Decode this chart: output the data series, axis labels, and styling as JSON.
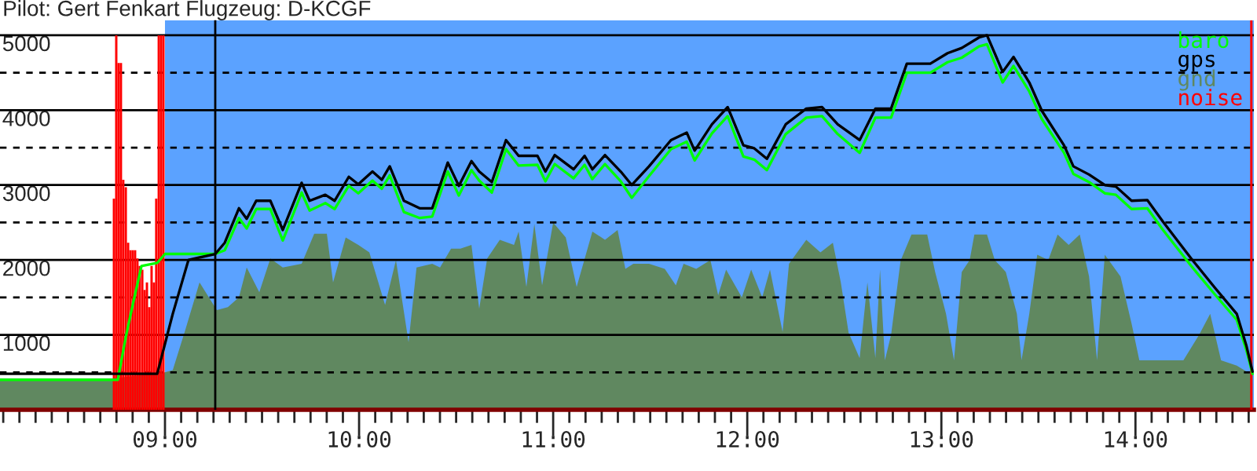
{
  "chart_data": {
    "type": "line",
    "title": "Pilot: Gert Fenkart Flugzeug: D-KCGF",
    "xlim": [
      8.15,
      14.61
    ],
    "ylim": [
      0,
      5200
    ],
    "xticks": [
      {
        "value": 8.1667,
        "label": null
      },
      {
        "value": 8.25,
        "label": null
      },
      {
        "value": 8.3333,
        "label": null
      },
      {
        "value": 8.4167,
        "label": null
      },
      {
        "value": 8.5,
        "label": null
      },
      {
        "value": 8.5833,
        "label": null
      },
      {
        "value": 8.6667,
        "label": null
      },
      {
        "value": 8.75,
        "label": null
      },
      {
        "value": 8.8333,
        "label": null
      },
      {
        "value": 8.9167,
        "label": null
      },
      {
        "value": 9,
        "label": "09:00"
      },
      {
        "value": 9.0833,
        "label": null
      },
      {
        "value": 9.1667,
        "label": null
      },
      {
        "value": 9.25,
        "label": null
      },
      {
        "value": 9.3333,
        "label": null
      },
      {
        "value": 9.4167,
        "label": null
      },
      {
        "value": 9.5,
        "label": null
      },
      {
        "value": 9.5833,
        "label": null
      },
      {
        "value": 9.6667,
        "label": null
      },
      {
        "value": 9.75,
        "label": null
      },
      {
        "value": 9.8333,
        "label": null
      },
      {
        "value": 9.9167,
        "label": null
      },
      {
        "value": 10,
        "label": "10:00"
      },
      {
        "value": 10.0833,
        "label": null
      },
      {
        "value": 10.1667,
        "label": null
      },
      {
        "value": 10.25,
        "label": null
      },
      {
        "value": 10.3333,
        "label": null
      },
      {
        "value": 10.4167,
        "label": null
      },
      {
        "value": 10.5,
        "label": null
      },
      {
        "value": 10.5833,
        "label": null
      },
      {
        "value": 10.6667,
        "label": null
      },
      {
        "value": 10.75,
        "label": null
      },
      {
        "value": 10.8333,
        "label": null
      },
      {
        "value": 10.9167,
        "label": null
      },
      {
        "value": 11,
        "label": "11:00"
      },
      {
        "value": 11.0833,
        "label": null
      },
      {
        "value": 11.1667,
        "label": null
      },
      {
        "value": 11.25,
        "label": null
      },
      {
        "value": 11.3333,
        "label": null
      },
      {
        "value": 11.4167,
        "label": null
      },
      {
        "value": 11.5,
        "label": null
      },
      {
        "value": 11.5833,
        "label": null
      },
      {
        "value": 11.6667,
        "label": null
      },
      {
        "value": 11.75,
        "label": null
      },
      {
        "value": 11.8333,
        "label": null
      },
      {
        "value": 11.9167,
        "label": null
      },
      {
        "value": 12,
        "label": "12:00"
      },
      {
        "value": 12.0833,
        "label": null
      },
      {
        "value": 12.1667,
        "label": null
      },
      {
        "value": 12.25,
        "label": null
      },
      {
        "value": 12.3333,
        "label": null
      },
      {
        "value": 12.4167,
        "label": null
      },
      {
        "value": 12.5,
        "label": null
      },
      {
        "value": 12.5833,
        "label": null
      },
      {
        "value": 12.6667,
        "label": null
      },
      {
        "value": 12.75,
        "label": null
      },
      {
        "value": 12.8333,
        "label": null
      },
      {
        "value": 12.9167,
        "label": null
      },
      {
        "value": 13,
        "label": "13:00"
      },
      {
        "value": 13.0833,
        "label": null
      },
      {
        "value": 13.1667,
        "label": null
      },
      {
        "value": 13.25,
        "label": null
      },
      {
        "value": 13.3333,
        "label": null
      },
      {
        "value": 13.4167,
        "label": null
      },
      {
        "value": 13.5,
        "label": null
      },
      {
        "value": 13.5833,
        "label": null
      },
      {
        "value": 13.6667,
        "label": null
      },
      {
        "value": 13.75,
        "label": null
      },
      {
        "value": 13.8333,
        "label": null
      },
      {
        "value": 13.9167,
        "label": null
      },
      {
        "value": 14,
        "label": "14:00"
      },
      {
        "value": 14.0833,
        "label": null
      },
      {
        "value": 14.1667,
        "label": null
      },
      {
        "value": 14.25,
        "label": null
      },
      {
        "value": 14.3333,
        "label": null
      },
      {
        "value": 14.4167,
        "label": null
      },
      {
        "value": 14.5,
        "label": null
      },
      {
        "value": 14.5833,
        "label": null
      }
    ],
    "yticks": [
      {
        "value": 500,
        "label": null
      },
      1000,
      {
        "value": 1500,
        "label": null
      },
      2000,
      {
        "value": 2500,
        "label": null
      },
      3000,
      {
        "value": 3500,
        "label": null
      },
      4000,
      {
        "value": 4500,
        "label": null
      },
      5000
    ],
    "grid": "y",
    "legend": "top right",
    "bands": [
      {
        "axis": "x",
        "from": 9.0,
        "to": 14.61,
        "color": "#5ba2ff"
      }
    ],
    "ref_lines": [
      {
        "axis": "x",
        "value": 9.259,
        "color": "#000000"
      }
    ],
    "series": [
      {
        "name": "gnd",
        "type": "area",
        "color": "#608860",
        "x": [
          8.15,
          8.733,
          9.0,
          9.04,
          9.105,
          9.178,
          9.267,
          9.324,
          9.381,
          9.421,
          9.486,
          9.543,
          9.607,
          9.704,
          9.769,
          9.834,
          9.866,
          9.931,
          9.996,
          10.053,
          10.134,
          10.19,
          10.255,
          10.296,
          10.377,
          10.417,
          10.474,
          10.522,
          10.579,
          10.619,
          10.66,
          10.725,
          10.798,
          10.822,
          10.862,
          10.903,
          10.943,
          11.0,
          11.065,
          11.121,
          11.202,
          11.267,
          11.332,
          11.372,
          11.413,
          11.494,
          11.575,
          11.632,
          11.672,
          11.737,
          11.81,
          11.85,
          11.891,
          11.972,
          12.02,
          12.077,
          12.117,
          12.182,
          12.215,
          12.304,
          12.377,
          12.441,
          12.482,
          12.522,
          12.579,
          12.619,
          12.66,
          12.684,
          12.709,
          12.741,
          12.79,
          12.846,
          12.927,
          12.968,
          13.024,
          13.065,
          13.105,
          13.146,
          13.17,
          13.235,
          13.275,
          13.332,
          13.389,
          13.413,
          13.453,
          13.494,
          13.551,
          13.599,
          13.656,
          13.713,
          13.761,
          13.802,
          13.842,
          13.923,
          13.98,
          14.02,
          14.142,
          14.247,
          14.328,
          14.385,
          14.441,
          14.522,
          14.603
        ],
        "values": [
          420,
          420,
          500,
          530,
          1070,
          1700,
          1330,
          1370,
          1500,
          1900,
          1570,
          2020,
          1900,
          1950,
          2350,
          2350,
          1700,
          2300,
          2200,
          2100,
          1400,
          2000,
          900,
          1900,
          1950,
          1900,
          2150,
          2150,
          2200,
          1350,
          2020,
          2270,
          2200,
          2380,
          1640,
          2480,
          1660,
          2500,
          2300,
          1640,
          2380,
          2270,
          2400,
          1880,
          1950,
          1950,
          1880,
          1660,
          1950,
          1880,
          2000,
          1530,
          1870,
          1500,
          1870,
          1500,
          1870,
          1040,
          1950,
          2270,
          2100,
          2230,
          1700,
          1030,
          690,
          1700,
          690,
          1870,
          660,
          1000,
          1990,
          2340,
          2340,
          1840,
          1280,
          660,
          1840,
          2000,
          2340,
          2340,
          2000,
          1840,
          1280,
          660,
          1280,
          2070,
          2000,
          2340,
          2200,
          2340,
          1780,
          660,
          2070,
          1780,
          1150,
          660,
          660,
          660,
          1000,
          1280,
          660,
          590,
          460
        ]
      },
      {
        "name": "noise",
        "type": "bar",
        "color": "#ff0000",
        "x": [
          8.737,
          8.749,
          8.761,
          8.773,
          8.785,
          8.798,
          8.81,
          8.822,
          8.834,
          8.846,
          8.858,
          8.87,
          8.883,
          8.895,
          8.907,
          8.919,
          8.931,
          8.943,
          8.955,
          8.968,
          8.98,
          8.992,
          14.597
        ],
        "values": [
          2820,
          5000,
          4630,
          4630,
          3070,
          2970,
          2230,
          2130,
          2130,
          2130,
          2020,
          1920,
          1870,
          1600,
          1700,
          1370,
          1920,
          1700,
          2820,
          5000,
          5000,
          5000,
          5200
        ]
      },
      {
        "name": "baro",
        "color": "#00ff00",
        "x": [
          8.15,
          8.733,
          8.757,
          8.798,
          8.838,
          8.879,
          8.96,
          9.0,
          9.259,
          9.308,
          9.381,
          9.421,
          9.47,
          9.543,
          9.607,
          9.704,
          9.745,
          9.826,
          9.874,
          9.947,
          9.996,
          10.069,
          10.117,
          10.158,
          10.231,
          10.312,
          10.377,
          10.457,
          10.514,
          10.579,
          10.619,
          10.684,
          10.757,
          10.822,
          10.919,
          10.96,
          11.008,
          11.105,
          11.162,
          11.202,
          11.267,
          11.348,
          11.405,
          11.494,
          11.607,
          11.688,
          11.729,
          11.818,
          11.899,
          11.98,
          12.036,
          12.101,
          12.198,
          12.304,
          12.385,
          12.466,
          12.579,
          12.66,
          12.741,
          12.822,
          12.943,
          13.032,
          13.105,
          13.194,
          13.235,
          13.316,
          13.372,
          13.453,
          13.518,
          13.632,
          13.68,
          13.761,
          13.842,
          13.899,
          13.98,
          14.061,
          14.142,
          14.287,
          14.409,
          14.522,
          14.571,
          14.603
        ],
        "values": [
          400,
          400,
          400,
          970,
          1450,
          1920,
          1960,
          2080,
          2080,
          2130,
          2560,
          2420,
          2680,
          2680,
          2260,
          2900,
          2660,
          2760,
          2680,
          2990,
          2890,
          3060,
          2950,
          3130,
          2640,
          2560,
          2580,
          3180,
          2860,
          3200,
          3060,
          2900,
          3480,
          3260,
          3270,
          3050,
          3280,
          3090,
          3270,
          3080,
          3280,
          3050,
          2830,
          3120,
          3480,
          3580,
          3330,
          3690,
          3920,
          3380,
          3340,
          3200,
          3680,
          3900,
          3920,
          3680,
          3430,
          3900,
          3900,
          4500,
          4500,
          4640,
          4700,
          4850,
          4880,
          4370,
          4590,
          4250,
          3880,
          3430,
          3150,
          3040,
          2890,
          2870,
          2680,
          2690,
          2400,
          1920,
          1540,
          1200,
          800,
          480
        ]
      },
      {
        "name": "gps",
        "color": "#000000",
        "x": [
          8.15,
          8.96,
          9.04,
          9.121,
          9.259,
          9.308,
          9.381,
          9.421,
          9.47,
          9.543,
          9.607,
          9.704,
          9.745,
          9.826,
          9.874,
          9.947,
          9.996,
          10.069,
          10.117,
          10.158,
          10.231,
          10.312,
          10.377,
          10.457,
          10.514,
          10.579,
          10.619,
          10.684,
          10.757,
          10.822,
          10.919,
          10.96,
          11.008,
          11.105,
          11.162,
          11.202,
          11.267,
          11.348,
          11.405,
          11.494,
          11.607,
          11.688,
          11.729,
          11.818,
          11.899,
          11.98,
          12.036,
          12.101,
          12.198,
          12.304,
          12.385,
          12.466,
          12.579,
          12.66,
          12.741,
          12.822,
          12.943,
          13.032,
          13.105,
          13.194,
          13.235,
          13.316,
          13.372,
          13.453,
          13.518,
          13.632,
          13.68,
          13.761,
          13.842,
          13.899,
          13.98,
          14.061,
          14.142,
          14.287,
          14.409,
          14.522,
          14.571,
          14.603
        ],
        "values": [
          480,
          480,
          1280,
          2000,
          2080,
          2230,
          2690,
          2550,
          2790,
          2790,
          2400,
          3030,
          2790,
          2870,
          2790,
          3110,
          3010,
          3180,
          3070,
          3250,
          2790,
          2690,
          2690,
          3300,
          2990,
          3320,
          3180,
          3040,
          3600,
          3390,
          3390,
          3180,
          3400,
          3210,
          3390,
          3210,
          3400,
          3180,
          3000,
          3250,
          3600,
          3700,
          3460,
          3810,
          4040,
          3530,
          3490,
          3350,
          3810,
          4020,
          4040,
          3810,
          3600,
          4020,
          4020,
          4620,
          4620,
          4760,
          4830,
          4970,
          5000,
          4510,
          4710,
          4370,
          3990,
          3530,
          3250,
          3140,
          3000,
          2980,
          2790,
          2800,
          2510,
          2020,
          1630,
          1280,
          860,
          510
        ]
      }
    ]
  }
}
